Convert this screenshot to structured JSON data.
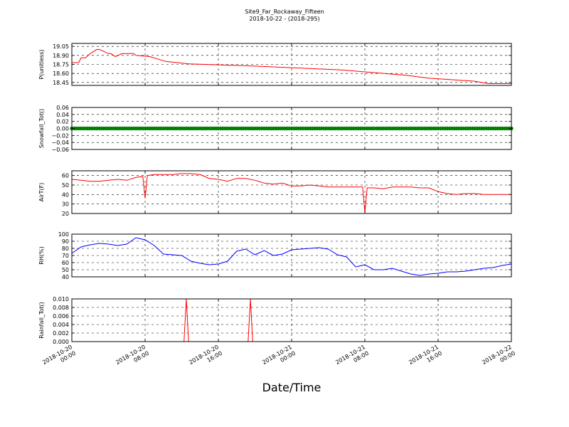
{
  "title_line1": "Site9_Far_Rockaway_Fifteen",
  "title_line2": "2018-10-22 - (2018-295)",
  "xlabel": "Date/Time",
  "x_ticks": [
    {
      "value": "2018-10-20 00:00",
      "line1": "2018-10-20",
      "line2": "00:00"
    },
    {
      "value": "2018-10-20 08:00",
      "line1": "2018-10-20",
      "line2": "08:00"
    },
    {
      "value": "2018-10-20 16:00",
      "line1": "2018-10-20",
      "line2": "16:00"
    },
    {
      "value": "2018-10-21 00:00",
      "line1": "2018-10-21",
      "line2": "00:00"
    },
    {
      "value": "2018-10-21 08:00",
      "line1": "2018-10-21",
      "line2": "08:00"
    },
    {
      "value": "2018-10-21 16:00",
      "line1": "2018-10-21",
      "line2": "16:00"
    },
    {
      "value": "2018-10-22 00:00",
      "line1": "2018-10-22",
      "line2": "00:00"
    }
  ],
  "chart_data": [
    {
      "type": "line",
      "ylabel": "P(unitless)",
      "color": "#ff0000",
      "grid": true,
      "xlim": [
        "2018-10-20 00:00",
        "2018-10-22 00:00"
      ],
      "ylim": [
        18.4,
        19.1
      ],
      "yticks": [
        "18.45",
        "18.60",
        "18.75",
        "18.90",
        "19.05"
      ],
      "series": [
        {
          "x": [
            "2018-10-20 00:00",
            "2018-10-20 00:45",
            "2018-10-20 01:00",
            "2018-10-20 01:30",
            "2018-10-20 02:00",
            "2018-10-20 02:45",
            "2018-10-20 03:00",
            "2018-10-20 04:00",
            "2018-10-20 04:15",
            "2018-10-20 04:45",
            "2018-10-20 05:30",
            "2018-10-20 06:45",
            "2018-10-20 07:00",
            "2018-10-20 08:30",
            "2018-10-20 10:15",
            "2018-10-20 12:45",
            "2018-10-20 18:45",
            "2018-10-21 05:15",
            "2018-10-21 08:30",
            "2018-10-21 10:00",
            "2018-10-21 12:30",
            "2018-10-21 15:00",
            "2018-10-21 20:00",
            "2018-10-21 21:30",
            "2018-10-22 00:00"
          ],
          "y": [
            18.78,
            18.78,
            18.86,
            18.86,
            18.93,
            19.0,
            19.0,
            18.93,
            18.93,
            18.88,
            18.93,
            18.93,
            18.9,
            18.88,
            18.8,
            18.76,
            18.73,
            18.66,
            18.62,
            18.6,
            18.57,
            18.52,
            18.47,
            18.43,
            18.43
          ]
        }
      ]
    },
    {
      "type": "scatter",
      "ylabel": "Snowfall_Tot()",
      "color": "#008000",
      "grid": true,
      "xlim": [
        "2018-10-20 00:00",
        "2018-10-22 00:00"
      ],
      "ylim": [
        -0.06,
        0.06
      ],
      "yticks": [
        "−0.06",
        "−0.04",
        "−0.02",
        "0.00",
        "0.02",
        "0.04",
        "0.06"
      ],
      "series": [
        {
          "value": 0.0,
          "interval_minutes": 15
        }
      ]
    },
    {
      "type": "line",
      "ylabel": "AirT(F)",
      "color": "#ff0000",
      "grid": true,
      "xlim": [
        "2018-10-20 00:00",
        "2018-10-22 00:00"
      ],
      "ylim": [
        20,
        65
      ],
      "yticks": [
        "20",
        "30",
        "40",
        "50",
        "60"
      ],
      "series": [
        {
          "x": [
            "2018-10-20 00:00",
            "2018-10-20 01:00",
            "2018-10-20 02:00",
            "2018-10-20 03:00",
            "2018-10-20 04:00",
            "2018-10-20 05:00",
            "2018-10-20 06:00",
            "2018-10-20 07:00",
            "2018-10-20 07:45",
            "2018-10-20 08:00",
            "2018-10-20 08:15",
            "2018-10-20 09:00",
            "2018-10-20 10:00",
            "2018-10-20 11:00",
            "2018-10-20 12:00",
            "2018-10-20 13:00",
            "2018-10-20 14:00",
            "2018-10-20 15:00",
            "2018-10-20 16:00",
            "2018-10-20 17:00",
            "2018-10-20 18:00",
            "2018-10-20 19:00",
            "2018-10-20 20:00",
            "2018-10-20 21:00",
            "2018-10-20 22:00",
            "2018-10-20 23:00",
            "2018-10-21 00:00",
            "2018-10-21 01:00",
            "2018-10-21 02:00",
            "2018-10-21 03:00",
            "2018-10-21 04:00",
            "2018-10-21 05:00",
            "2018-10-21 06:00",
            "2018-10-21 07:00",
            "2018-10-21 07:45",
            "2018-10-21 08:00",
            "2018-10-21 08:15",
            "2018-10-21 09:00",
            "2018-10-21 10:00",
            "2018-10-21 11:00",
            "2018-10-21 12:00",
            "2018-10-21 13:00",
            "2018-10-21 14:00",
            "2018-10-21 15:00",
            "2018-10-21 16:00",
            "2018-10-21 17:00",
            "2018-10-21 18:00",
            "2018-10-21 19:00",
            "2018-10-21 20:00",
            "2018-10-21 21:00",
            "2018-10-21 22:00",
            "2018-10-21 23:00",
            "2018-10-22 00:00"
          ],
          "y": [
            56,
            55,
            54,
            54,
            55,
            56,
            55,
            58,
            59,
            36,
            60,
            61,
            61,
            61,
            62,
            62,
            61,
            57,
            56,
            54,
            57,
            57,
            55,
            52,
            51,
            52,
            49,
            49,
            50,
            49,
            48,
            48,
            48,
            48,
            48,
            21,
            47,
            47,
            46,
            48,
            48,
            48,
            47,
            47,
            43,
            41,
            40,
            41,
            41,
            40,
            40,
            40,
            40
          ]
        }
      ]
    },
    {
      "type": "line",
      "ylabel": "RH(%)",
      "color": "#0000ff",
      "grid": true,
      "xlim": [
        "2018-10-20 00:00",
        "2018-10-22 00:00"
      ],
      "ylim": [
        40,
        100
      ],
      "yticks": [
        "40",
        "50",
        "60",
        "70",
        "80",
        "90",
        "100"
      ],
      "series": [
        {
          "x": [
            "2018-10-20 00:00",
            "2018-10-20 01:00",
            "2018-10-20 02:00",
            "2018-10-20 03:00",
            "2018-10-20 04:00",
            "2018-10-20 05:00",
            "2018-10-20 06:00",
            "2018-10-20 07:00",
            "2018-10-20 08:00",
            "2018-10-20 09:00",
            "2018-10-20 10:00",
            "2018-10-20 11:00",
            "2018-10-20 12:00",
            "2018-10-20 13:00",
            "2018-10-20 14:00",
            "2018-10-20 15:00",
            "2018-10-20 16:00",
            "2018-10-20 17:00",
            "2018-10-20 18:00",
            "2018-10-20 19:00",
            "2018-10-20 20:00",
            "2018-10-20 21:00",
            "2018-10-20 22:00",
            "2018-10-20 23:00",
            "2018-10-21 00:00",
            "2018-10-21 01:00",
            "2018-10-21 02:00",
            "2018-10-21 03:00",
            "2018-10-21 04:00",
            "2018-10-21 05:00",
            "2018-10-21 06:00",
            "2018-10-21 07:00",
            "2018-10-21 08:00",
            "2018-10-21 09:00",
            "2018-10-21 10:00",
            "2018-10-21 11:00",
            "2018-10-21 12:00",
            "2018-10-21 13:00",
            "2018-10-21 14:00",
            "2018-10-21 15:00",
            "2018-10-21 16:00",
            "2018-10-21 17:00",
            "2018-10-21 18:00",
            "2018-10-21 19:00",
            "2018-10-21 20:00",
            "2018-10-21 21:00",
            "2018-10-21 22:00",
            "2018-10-21 23:00",
            "2018-10-22 00:00"
          ],
          "y": [
            73,
            82,
            85,
            87,
            86,
            84,
            86,
            95,
            92,
            84,
            72,
            71,
            70,
            62,
            59,
            57,
            58,
            62,
            76,
            79,
            71,
            77,
            70,
            72,
            78,
            79,
            80,
            81,
            79,
            71,
            68,
            54,
            57,
            50,
            50,
            52,
            48,
            44,
            42,
            44,
            45,
            47,
            47,
            48,
            50,
            52,
            53,
            56,
            58
          ]
        }
      ]
    },
    {
      "type": "line",
      "ylabel": "Rainfall_Tot()",
      "color": "#ff0000",
      "grid": true,
      "xlim": [
        "2018-10-20 00:00",
        "2018-10-22 00:00"
      ],
      "ylim": [
        0,
        0.01
      ],
      "yticks": [
        "0.000",
        "0.002",
        "0.004",
        "0.006",
        "0.008",
        "0.010"
      ],
      "series": [
        {
          "x": [
            "2018-10-20 00:00",
            "2018-10-20 12:15",
            "2018-10-20 12:30",
            "2018-10-20 12:45",
            "2018-10-20 19:15",
            "2018-10-20 19:30",
            "2018-10-20 19:45",
            "2018-10-22 00:00"
          ],
          "y": [
            0,
            0,
            0.01,
            0,
            0,
            0.01,
            0,
            0
          ]
        }
      ]
    }
  ]
}
